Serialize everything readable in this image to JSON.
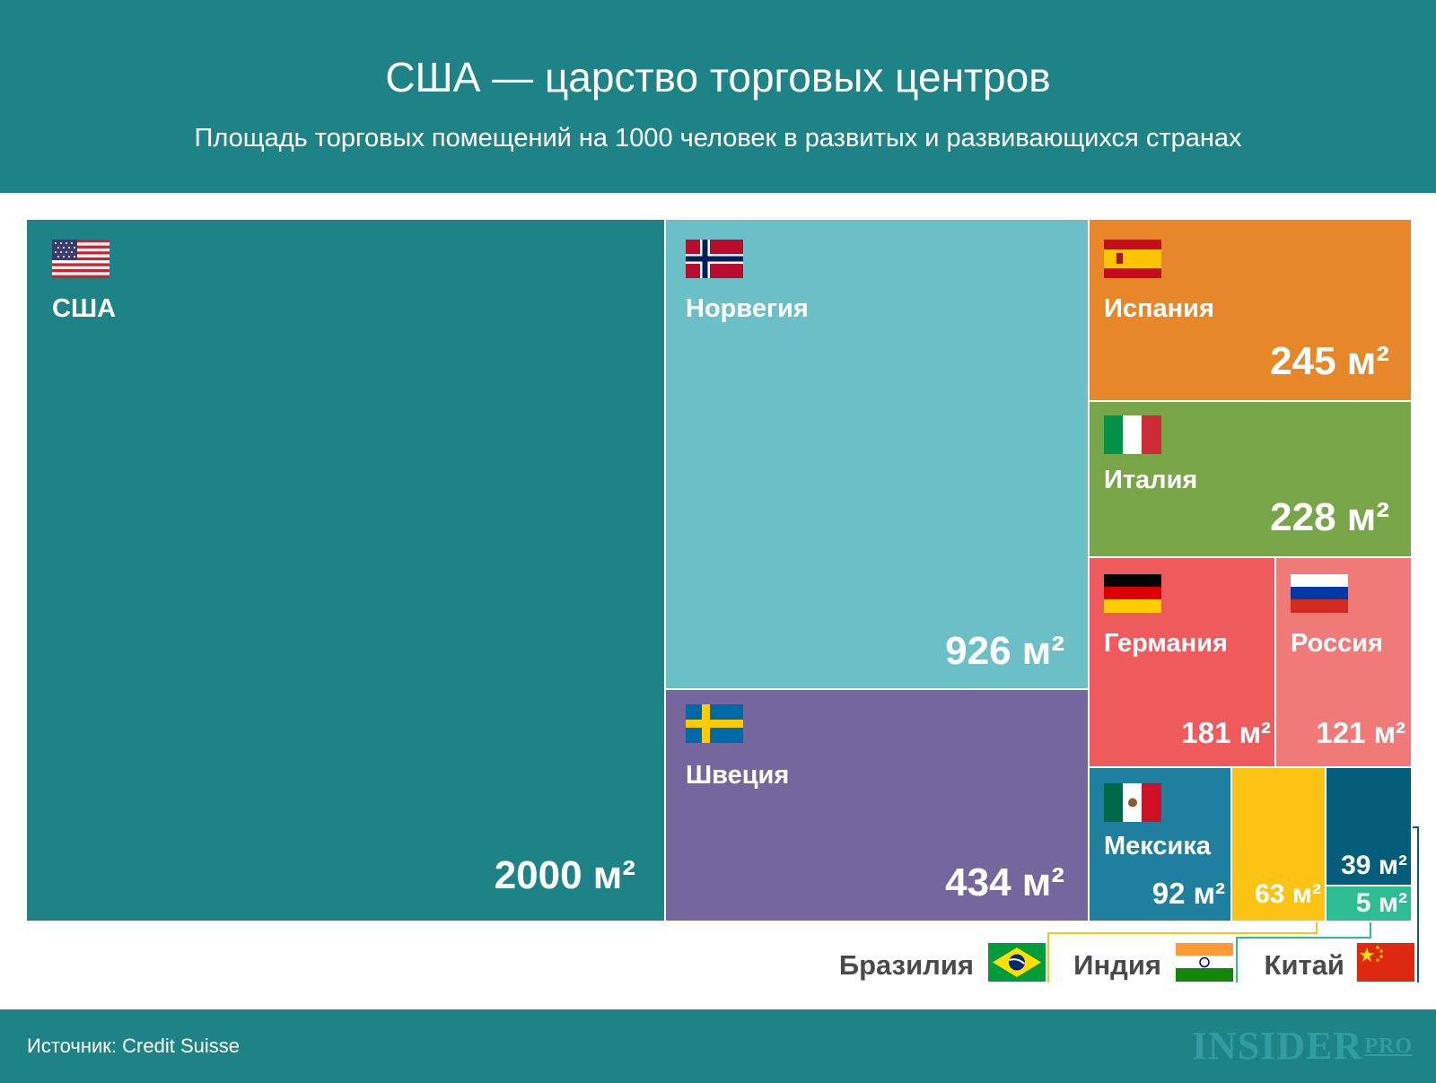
{
  "header": {
    "title": "США — царство торговых центров",
    "subtitle": "Площадь торговых помещений на 1000 человек в развитых и развивающихся странах"
  },
  "footer": {
    "source": "Источник: Credit Suisse",
    "logo": "INSIDER",
    "logo_sup": "PRO"
  },
  "colors": {
    "header_bg": "#1e8387",
    "usa": "#1e8387",
    "norway": "#6bc0c8",
    "sweden": "#75679e",
    "spain": "#e8872a",
    "italy": "#77a547",
    "germany": "#ef5b5d",
    "russia": "#f07a78",
    "mexico": "#1e7f9f",
    "brazil": "#fbc313",
    "india": "#045d7b",
    "china": "#2ebd91"
  },
  "chart_data": {
    "type": "treemap",
    "title": "США — царство торговых центров",
    "subtitle": "Площадь торговых помещений на 1000 человек в развитых и развивающихся странах",
    "unit": "м²",
    "items": [
      {
        "name": "США",
        "value": 2000,
        "label": "2000 м²",
        "flag": "usa-flag"
      },
      {
        "name": "Норвегия",
        "value": 926,
        "label": "926 м²",
        "flag": "norway-flag"
      },
      {
        "name": "Швеция",
        "value": 434,
        "label": "434 м²",
        "flag": "sweden-flag"
      },
      {
        "name": "Испания",
        "value": 245,
        "label": "245 м²",
        "flag": "spain-flag"
      },
      {
        "name": "Италия",
        "value": 228,
        "label": "228 м²",
        "flag": "italy-flag"
      },
      {
        "name": "Германия",
        "value": 181,
        "label": "181 м²",
        "flag": "germany-flag"
      },
      {
        "name": "Россия",
        "value": 121,
        "label": "121 м²",
        "flag": "russia-flag"
      },
      {
        "name": "Мексика",
        "value": 92,
        "label": "92 м²",
        "flag": "mexico-flag"
      },
      {
        "name": "Бразилия",
        "value": 63,
        "label": "63 м²",
        "flag": "brazil-flag"
      },
      {
        "name": "Индия",
        "value": 39,
        "label": "39 м²",
        "flag": "india-flag"
      },
      {
        "name": "Китай",
        "value": 5,
        "label": "5 м²",
        "flag": "china-flag"
      }
    ]
  }
}
